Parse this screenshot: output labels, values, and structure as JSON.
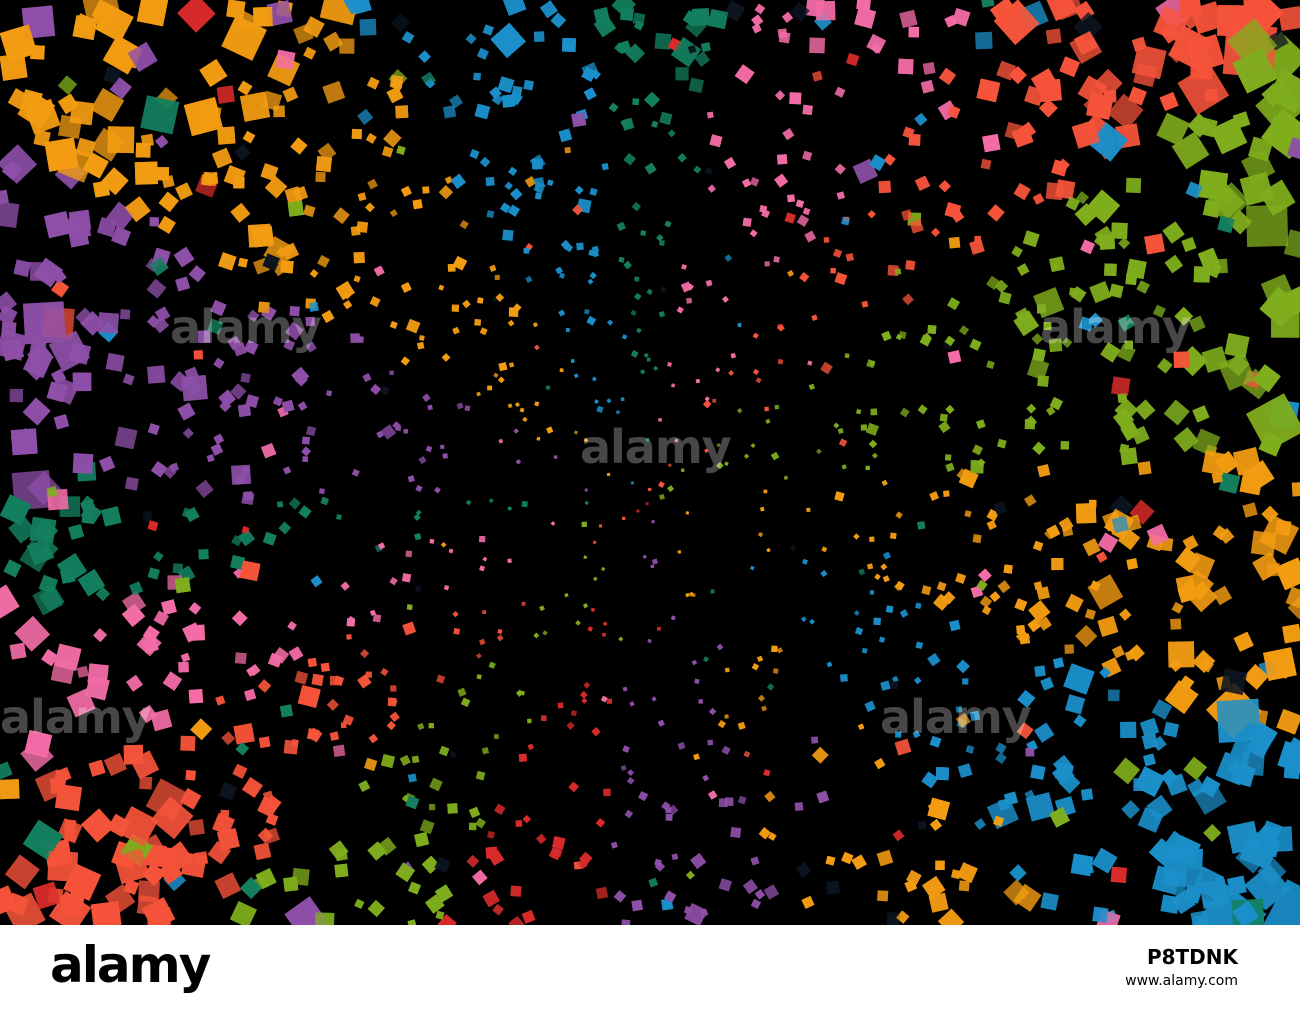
{
  "artwork": {
    "background_color": "#000000",
    "palette": [
      "#8e4fa8",
      "#f39c12",
      "#1b8fc9",
      "#13805f",
      "#f26ca6",
      "#f5533a",
      "#7fad1d",
      "#d92b2b",
      "#0b1420"
    ]
  },
  "watermark": {
    "text": "alamy"
  },
  "footer": {
    "logo": "alamy",
    "image_id": "P8TDNK",
    "site_url": "www.alamy.com"
  }
}
